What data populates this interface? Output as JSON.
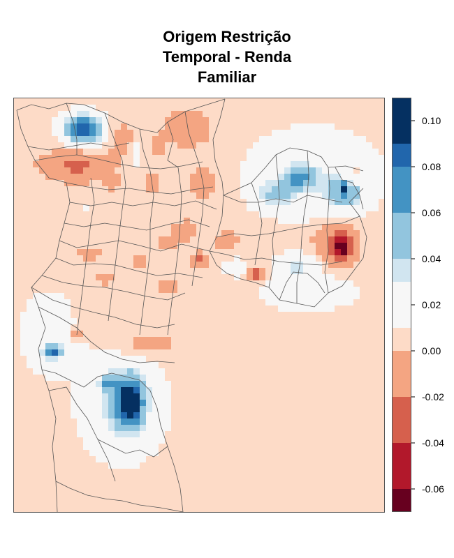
{
  "title_lines": [
    "Origem Restrição",
    "Temporal - Renda",
    "Familiar"
  ],
  "legend": {
    "bins": [
      {
        "from": -0.07,
        "to": -0.06,
        "color": "#67001f"
      },
      {
        "from": -0.06,
        "to": -0.04,
        "color": "#b2182b"
      },
      {
        "from": -0.04,
        "to": -0.02,
        "color": "#d6604d"
      },
      {
        "from": -0.02,
        "to": 0.0,
        "color": "#f4a582"
      },
      {
        "from": 0.0,
        "to": 0.01,
        "color": "#fddbc7"
      },
      {
        "from": 0.01,
        "to": 0.03,
        "color": "#f7f7f7"
      },
      {
        "from": 0.03,
        "to": 0.04,
        "color": "#d1e5f0"
      },
      {
        "from": 0.04,
        "to": 0.06,
        "color": "#92c5de"
      },
      {
        "from": 0.06,
        "to": 0.08,
        "color": "#4393c3"
      },
      {
        "from": 0.08,
        "to": 0.09,
        "color": "#2166ac"
      },
      {
        "from": 0.09,
        "to": 0.11,
        "color": "#053061"
      }
    ],
    "tick_values": [
      -0.06,
      -0.04,
      -0.02,
      0.0,
      0.02,
      0.04,
      0.06,
      0.08,
      0.1
    ],
    "tick_labels": [
      "-0.06",
      "-0.04",
      "-0.02",
      "0.00",
      "0.02",
      "0.04",
      "0.06",
      "0.08",
      "0.10"
    ]
  },
  "colors": {
    "background_cell": "#fddbc7",
    "boundary": "#555555"
  }
}
